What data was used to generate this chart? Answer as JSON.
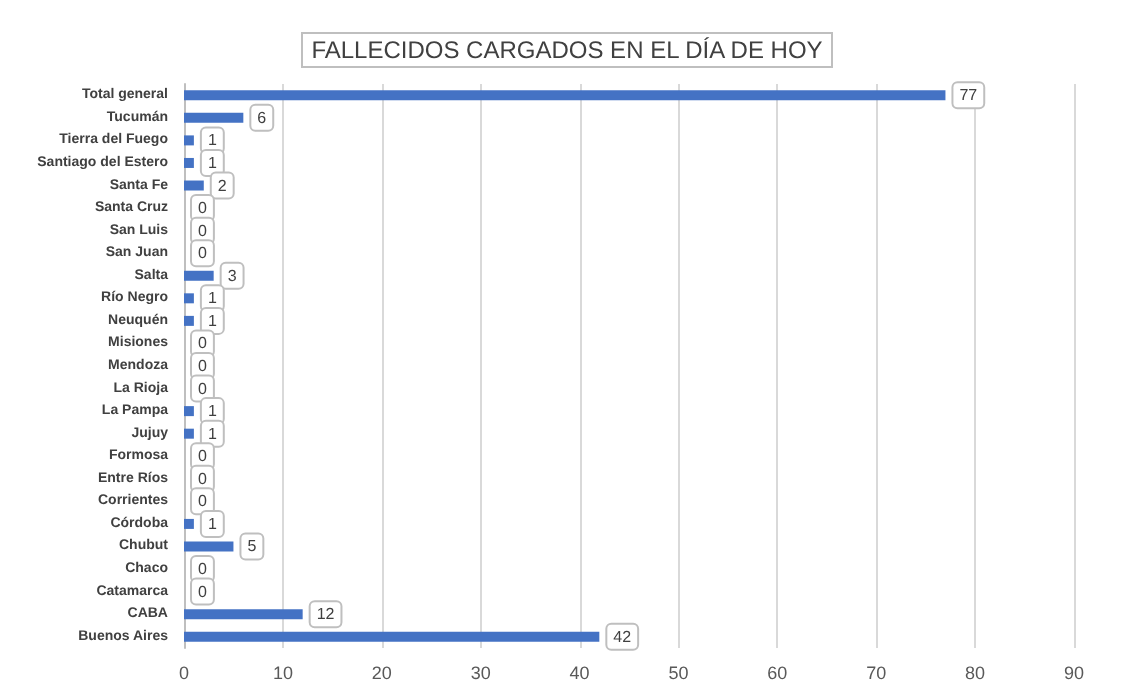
{
  "chart_data": {
    "type": "bar",
    "orientation": "horizontal",
    "title": "FALLECIDOS CARGADOS EN EL DÍA DE HOY",
    "categories": [
      "Total general",
      "Tucumán",
      "Tierra del Fuego",
      "Santiago del Estero",
      "Santa Fe",
      "Santa Cruz",
      "San Luis",
      "San Juan",
      "Salta",
      "Río Negro",
      "Neuquén",
      "Misiones",
      "Mendoza",
      "La Rioja",
      "La Pampa",
      "Jujuy",
      "Formosa",
      "Entre Ríos",
      "Corrientes",
      "Córdoba",
      "Chubut",
      "Chaco",
      "Catamarca",
      "CABA",
      "Buenos Aires"
    ],
    "values": [
      77,
      6,
      1,
      1,
      2,
      0,
      0,
      0,
      3,
      1,
      1,
      0,
      0,
      0,
      1,
      1,
      0,
      0,
      0,
      1,
      5,
      0,
      0,
      12,
      42
    ],
    "color": "#4472c4",
    "xlim": [
      0,
      90
    ],
    "xticks": [
      0,
      10,
      20,
      30,
      40,
      50,
      60,
      70,
      80,
      90
    ],
    "grid": "x",
    "data_labels": true
  }
}
